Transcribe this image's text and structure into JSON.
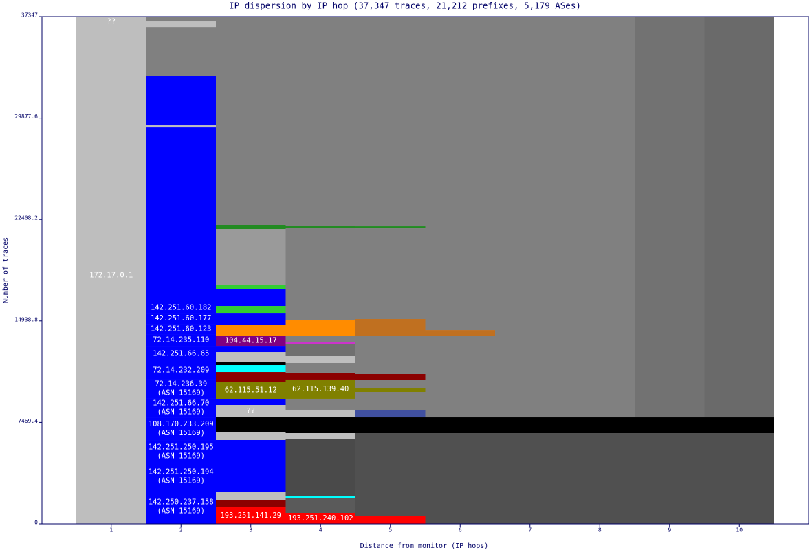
{
  "chart_data": {
    "type": "stacked-bar",
    "title": "IP dispersion by IP hop (37,347 traces, 21,212 prefixes, 5,179 ASes)",
    "x_label": "Distance from monitor (IP hops)",
    "y_label": "Number of traces",
    "categories": [
      "1",
      "2",
      "3",
      "4",
      "5",
      "6",
      "7",
      "8",
      "9",
      "10"
    ],
    "ylim": [
      0,
      37347
    ],
    "yticks": [
      0,
      7469.4,
      14938.8,
      22408.2,
      29877.6,
      37347
    ],
    "stacks": [
      {
        "segments": [
          {
            "value": 36588,
            "color": "#bebebe",
            "label": [
              "172.17.0.1"
            ]
          },
          {
            "value": 759,
            "color": "#bebebe",
            "label": [
              "??"
            ]
          }
        ]
      },
      {
        "segments": [
          {
            "value": 2530,
            "color": "#0000ff",
            "label": [
              "142.250.237.158",
              "(ASN 15169)"
            ]
          },
          {
            "value": 1923,
            "color": "#0000ff",
            "label": [
              "142.251.250.194",
              "(ASN 15169)"
            ]
          },
          {
            "value": 1720,
            "color": "#0000ff",
            "label": [
              "142.251.250.195",
              "(ASN 15169)"
            ]
          },
          {
            "value": 1670,
            "color": "#0000ff",
            "label": [
              "108.170.233.209",
              "(ASN 15169)"
            ]
          },
          {
            "value": 1417,
            "color": "#0000ff",
            "label": [
              "142.251.66.70",
              "(ASN 15169)"
            ]
          },
          {
            "value": 1417,
            "color": "#0000ff",
            "label": [
              "72.14.236.39",
              "(ASN 15169)"
            ]
          },
          {
            "value": 1265,
            "color": "#0000ff",
            "label": [
              "72.14.232.209"
            ]
          },
          {
            "value": 1164,
            "color": "#0000ff",
            "label": [
              "142.251.66.65"
            ]
          },
          {
            "value": 860,
            "color": "#0000ff",
            "label": [
              "72.14.235.110"
            ]
          },
          {
            "value": 759,
            "color": "#0000ff",
            "label": [
              "142.251.60.123"
            ]
          },
          {
            "value": 810,
            "color": "#0000ff",
            "label": [
              "142.251.60.177"
            ]
          },
          {
            "value": 759,
            "color": "#0000ff",
            "label": [
              "142.251.60.182"
            ]
          },
          {
            "value": 12903,
            "color": "#0000ff"
          },
          {
            "value": 152,
            "color": "#bebebe"
          },
          {
            "value": 3643,
            "color": "#0000ff"
          },
          {
            "value": 3593,
            "color": "#808080"
          },
          {
            "value": 405,
            "color": "#bebebe"
          },
          {
            "value": 357,
            "color": "#808080"
          }
        ]
      },
      {
        "segments": [
          {
            "value": 1214,
            "color": "#ff0000",
            "label": [
              "193.251.141.29"
            ]
          },
          {
            "value": 557,
            "color": "#8b0000"
          },
          {
            "value": 557,
            "color": "#bebebe"
          },
          {
            "value": 3846,
            "color": "#0000ff"
          },
          {
            "value": 607,
            "color": "#bebebe"
          },
          {
            "value": 1063,
            "color": "#000000"
          },
          {
            "value": 911,
            "color": "#bebebe",
            "label": [
              "??"
            ]
          },
          {
            "value": 455,
            "color": "#0000ff"
          },
          {
            "value": 1265,
            "color": "#808000",
            "label": [
              "62.115.51.12"
            ]
          },
          {
            "value": 708,
            "color": "#8b0000"
          },
          {
            "value": 506,
            "color": "#00ffff"
          },
          {
            "value": 253,
            "color": "#000000"
          },
          {
            "value": 708,
            "color": "#bebebe"
          },
          {
            "value": 455,
            "color": "#0000ff"
          },
          {
            "value": 759,
            "color": "#800080",
            "label": [
              "104.44.15.17"
            ]
          },
          {
            "value": 810,
            "color": "#ff8c00"
          },
          {
            "value": 860,
            "color": "#0000ff"
          },
          {
            "value": 506,
            "color": "#32cd32"
          },
          {
            "value": 1265,
            "color": "#0000ff"
          },
          {
            "value": 304,
            "color": "#32cd32"
          },
          {
            "value": 4099,
            "color": "#9a9a9a"
          },
          {
            "value": 304,
            "color": "#228b22"
          },
          {
            "value": 15335,
            "color": "#808080"
          }
        ]
      },
      {
        "segments": [
          {
            "value": 810,
            "color": "#ff0000",
            "label": [
              "193.251.240.102"
            ]
          },
          {
            "value": 1113,
            "color": "#5a5a5a"
          },
          {
            "value": 152,
            "color": "#00ffff"
          },
          {
            "value": 4200,
            "color": "#4a4a4a"
          },
          {
            "value": 405,
            "color": "#bebebe"
          },
          {
            "value": 1164,
            "color": "#000000"
          },
          {
            "value": 557,
            "color": "#bebebe"
          },
          {
            "value": 810,
            "color": "#808080"
          },
          {
            "value": 1417,
            "color": "#808000",
            "label": [
              "62.115.139.40"
            ]
          },
          {
            "value": 506,
            "color": "#8b0000"
          },
          {
            "value": 708,
            "color": "#808080"
          },
          {
            "value": 506,
            "color": "#bebebe"
          },
          {
            "value": 911,
            "color": "#707070"
          },
          {
            "value": 101,
            "color": "#cc33cc"
          },
          {
            "value": 506,
            "color": "#808080"
          },
          {
            "value": 1113,
            "color": "#ff8c00"
          },
          {
            "value": 6781,
            "color": "#808080"
          },
          {
            "value": 152,
            "color": "#228b22"
          },
          {
            "value": 15435,
            "color": "#808080"
          }
        ]
      },
      {
        "segments": [
          {
            "value": 607,
            "color": "#ff0000"
          },
          {
            "value": 6072,
            "color": "#505050"
          },
          {
            "value": 1164,
            "color": "#000000"
          },
          {
            "value": 557,
            "color": "#4050a0"
          },
          {
            "value": 1316,
            "color": "#808080"
          },
          {
            "value": 253,
            "color": "#808000"
          },
          {
            "value": 658,
            "color": "#808080"
          },
          {
            "value": 405,
            "color": "#8b0000"
          },
          {
            "value": 2834,
            "color": "#808080"
          },
          {
            "value": 1214,
            "color": "#c07020"
          },
          {
            "value": 6679,
            "color": "#808080"
          },
          {
            "value": 152,
            "color": "#228b22"
          },
          {
            "value": 15436,
            "color": "#808080"
          }
        ]
      },
      {
        "segments": [
          {
            "value": 6679,
            "color": "#505050"
          },
          {
            "value": 1164,
            "color": "#000000"
          },
          {
            "value": 6021,
            "color": "#808080"
          },
          {
            "value": 405,
            "color": "#c07020"
          },
          {
            "value": 23078,
            "color": "#808080"
          }
        ]
      },
      {
        "segments": [
          {
            "value": 6679,
            "color": "#505050"
          },
          {
            "value": 1164,
            "color": "#000000"
          },
          {
            "value": 29504,
            "color": "#808080"
          }
        ]
      },
      {
        "segments": [
          {
            "value": 6679,
            "color": "#505050"
          },
          {
            "value": 1164,
            "color": "#000000"
          },
          {
            "value": 29504,
            "color": "#808080"
          }
        ]
      },
      {
        "segments": [
          {
            "value": 6679,
            "color": "#505050"
          },
          {
            "value": 1164,
            "color": "#000000"
          },
          {
            "value": 29504,
            "color": "#727272"
          }
        ]
      },
      {
        "segments": [
          {
            "value": 6679,
            "color": "#505050"
          },
          {
            "value": 1164,
            "color": "#000000"
          },
          {
            "value": 29504,
            "color": "#6a6a6a"
          }
        ]
      }
    ]
  }
}
